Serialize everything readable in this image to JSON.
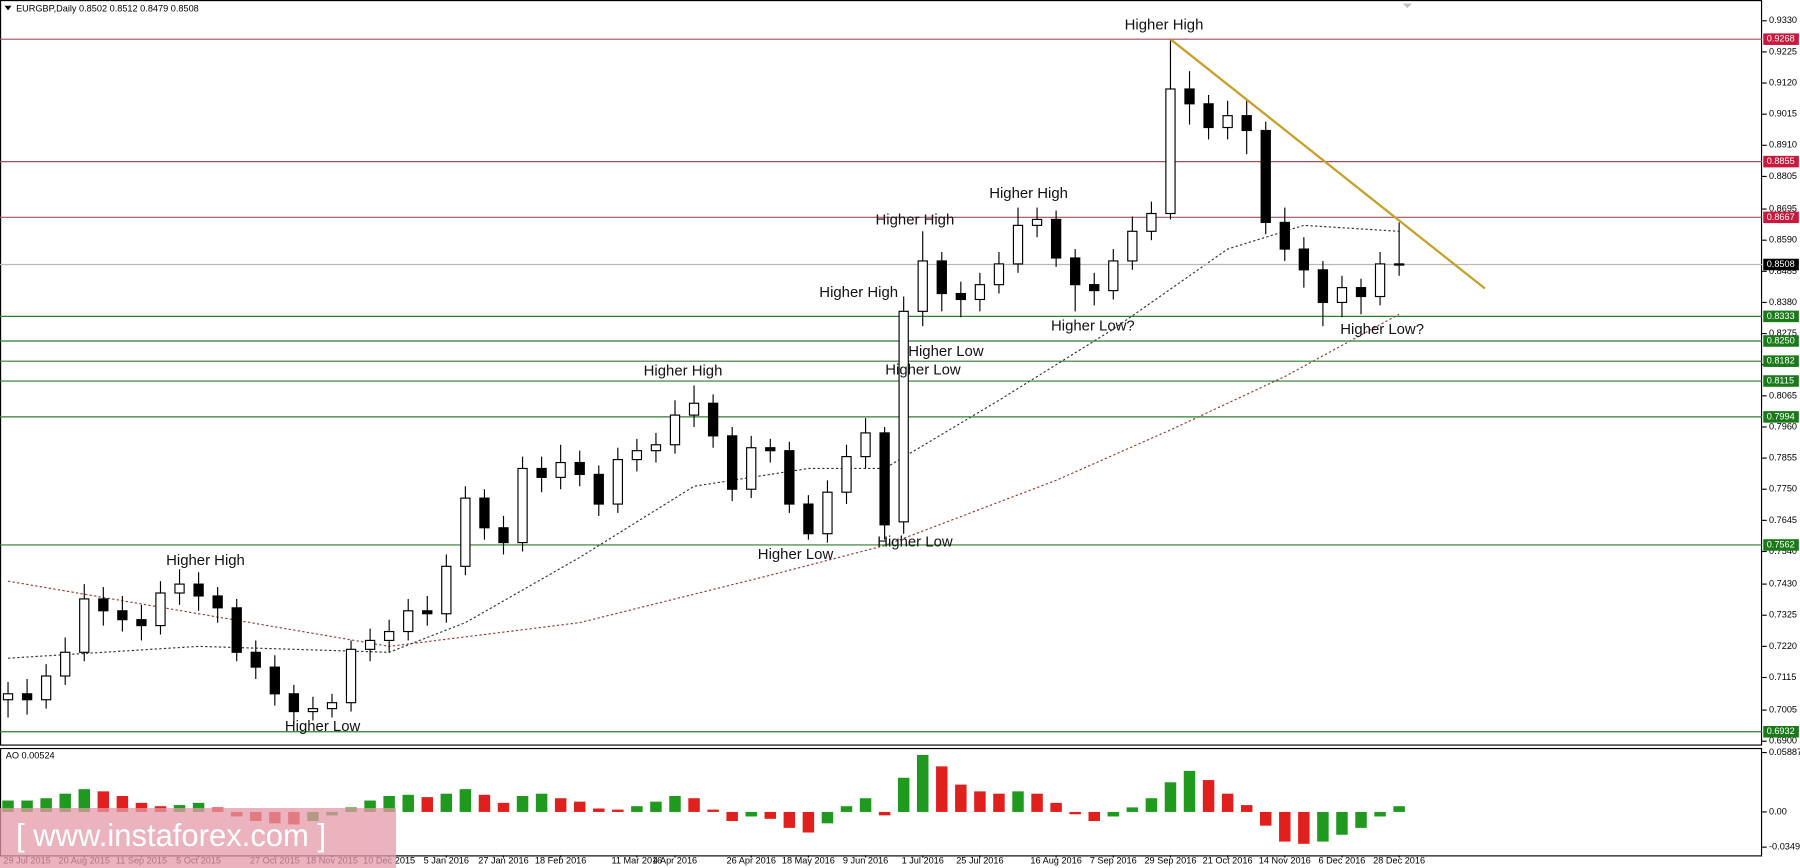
{
  "chart_data": {
    "type": "candlestick",
    "title": "EURGBP,Daily  0.8502 0.8512 0.8479 0.8508",
    "watermark": "[ www.instaforex.com ]",
    "categories": [
      null,
      "29 Jul 2015",
      null,
      null,
      "20 Aug 2015",
      null,
      null,
      "11 Sep 2015",
      null,
      null,
      "5 Oct 2015",
      null,
      null,
      null,
      "27 Oct 2015",
      null,
      null,
      "18 Nov 2015",
      null,
      null,
      "10 Dec 2015",
      null,
      null,
      "5 Jan 2016",
      null,
      null,
      "27 Jan 2016",
      null,
      null,
      "18 Feb 2016",
      null,
      null,
      null,
      "11 Mar 2016",
      null,
      "4 Apr 2016",
      null,
      null,
      null,
      "26 Apr 2016",
      null,
      null,
      "18 May 2016",
      null,
      null,
      "9 Jun 2016",
      null,
      null,
      "1 Jul 2016",
      null,
      null,
      "25 Jul 2016",
      null,
      null,
      null,
      "16 Aug 2016",
      null,
      null,
      "7 Sep 2016",
      null,
      null,
      "29 Sep 2016",
      null,
      null,
      "21 Oct 2016",
      null,
      null,
      "14 Nov 2016",
      null,
      null,
      "6 Dec 2016",
      null,
      null,
      "28 Dec 2016"
    ],
    "open": [
      0.704,
      0.706,
      0.704,
      0.712,
      0.72,
      0.738,
      0.734,
      0.731,
      0.729,
      0.74,
      0.743,
      0.739,
      0.735,
      0.72,
      0.715,
      0.706,
      0.7,
      0.701,
      0.703,
      0.721,
      0.724,
      0.727,
      0.734,
      0.733,
      0.749,
      0.772,
      0.762,
      0.757,
      0.782,
      0.779,
      0.784,
      0.78,
      0.77,
      0.785,
      0.788,
      0.79,
      0.8,
      0.804,
      0.793,
      0.775,
      0.789,
      0.788,
      0.77,
      0.76,
      0.774,
      0.786,
      0.794,
      0.764,
      0.835,
      0.852,
      0.841,
      0.839,
      0.844,
      0.851,
      0.864,
      0.866,
      0.853,
      0.844,
      0.842,
      0.852,
      0.862,
      0.868,
      0.91,
      0.905,
      0.897,
      0.901,
      0.896,
      0.865,
      0.856,
      0.849,
      0.838,
      0.843,
      0.84,
      0.851
    ],
    "high": [
      0.71,
      0.711,
      0.716,
      0.725,
      0.743,
      0.742,
      0.739,
      0.736,
      0.744,
      0.748,
      0.747,
      0.742,
      0.738,
      0.724,
      0.719,
      0.709,
      0.705,
      0.706,
      0.724,
      0.728,
      0.731,
      0.738,
      0.739,
      0.753,
      0.776,
      0.775,
      0.766,
      0.786,
      0.786,
      0.79,
      0.788,
      0.783,
      0.789,
      0.792,
      0.794,
      0.805,
      0.81,
      0.807,
      0.796,
      0.793,
      0.792,
      0.791,
      0.773,
      0.778,
      0.79,
      0.799,
      0.796,
      0.84,
      0.862,
      0.855,
      0.845,
      0.848,
      0.855,
      0.87,
      0.87,
      0.869,
      0.856,
      0.848,
      0.856,
      0.867,
      0.872,
      0.9268,
      0.916,
      0.908,
      0.906,
      0.906,
      0.899,
      0.87,
      0.86,
      0.852,
      0.847,
      0.846,
      0.855,
      0.865
    ],
    "low": [
      0.698,
      0.699,
      0.701,
      0.709,
      0.717,
      0.729,
      0.727,
      0.724,
      0.726,
      0.736,
      0.734,
      0.73,
      0.717,
      0.711,
      0.702,
      0.696,
      0.697,
      0.698,
      0.7,
      0.717,
      0.72,
      0.724,
      0.729,
      0.73,
      0.746,
      0.758,
      0.753,
      0.754,
      0.774,
      0.775,
      0.776,
      0.766,
      0.767,
      0.781,
      0.784,
      0.787,
      0.796,
      0.789,
      0.771,
      0.772,
      0.784,
      0.767,
      0.758,
      0.757,
      0.77,
      0.782,
      0.758,
      0.76,
      0.83,
      0.835,
      0.833,
      0.835,
      0.841,
      0.848,
      0.86,
      0.85,
      0.835,
      0.837,
      0.839,
      0.849,
      0.859,
      0.866,
      0.898,
      0.893,
      0.893,
      0.888,
      0.861,
      0.852,
      0.843,
      0.83,
      0.833,
      0.834,
      0.837,
      0.847
    ],
    "close": [
      0.706,
      0.704,
      0.712,
      0.72,
      0.738,
      0.734,
      0.731,
      0.729,
      0.74,
      0.743,
      0.739,
      0.735,
      0.72,
      0.715,
      0.706,
      0.7,
      0.701,
      0.703,
      0.721,
      0.724,
      0.727,
      0.734,
      0.733,
      0.749,
      0.772,
      0.762,
      0.757,
      0.782,
      0.779,
      0.784,
      0.78,
      0.77,
      0.785,
      0.788,
      0.79,
      0.8,
      0.804,
      0.793,
      0.775,
      0.789,
      0.788,
      0.77,
      0.76,
      0.774,
      0.786,
      0.794,
      0.763,
      0.835,
      0.852,
      0.841,
      0.839,
      0.844,
      0.851,
      0.864,
      0.866,
      0.853,
      0.844,
      0.842,
      0.852,
      0.862,
      0.868,
      0.91,
      0.905,
      0.897,
      0.901,
      0.896,
      0.865,
      0.856,
      0.849,
      0.838,
      0.843,
      0.84,
      0.851,
      0.8508
    ],
    "ylim": [
      0.6889,
      0.9369
    ],
    "yticks": [
      {
        "value": 0.933,
        "label": "0.9330"
      },
      0.9225,
      {
        "value": 0.912,
        "label": "0.9120"
      },
      0.9015,
      {
        "value": 0.891,
        "label": "0.8910"
      },
      0.8805,
      0.8695,
      {
        "value": 0.859,
        "label": "0.8590"
      },
      0.8485,
      {
        "value": 0.838,
        "label": "0.8380"
      },
      0.8275,
      {
        "value": 0.817,
        "label": "0.8170"
      },
      0.8065,
      {
        "value": 0.796,
        "label": "0.7960"
      },
      0.7855,
      {
        "value": 0.775,
        "label": "0.7750"
      },
      0.7645,
      {
        "value": 0.754,
        "label": "0.7540"
      },
      {
        "value": 0.743,
        "label": "0.7430"
      },
      0.7325,
      {
        "value": 0.722,
        "label": "0.7220"
      },
      0.7115,
      0.7005,
      {
        "value": 0.69,
        "label": "0.6900"
      }
    ],
    "levels": [
      {
        "value": 0.9268,
        "color": "#c8183c",
        "line": "#a05060"
      },
      {
        "value": 0.8855,
        "color": "#c8183c",
        "line": "#a05060"
      },
      {
        "value": 0.8667,
        "color": "#c8183c",
        "line": "#a05060"
      },
      {
        "value": 0.8508,
        "color": "#000000",
        "line": "#b8b8b8"
      },
      {
        "value": 0.8333,
        "color": "#1a7a1a",
        "line": "#2e7d2e"
      },
      {
        "value": 0.825,
        "label": "0.8250",
        "color": "#1a7a1a",
        "line": "#2e7d2e"
      },
      {
        "value": 0.8182,
        "color": "#1a7a1a",
        "line": "#2e7d2e"
      },
      {
        "value": 0.8115,
        "color": "#1a7a1a",
        "line": "#2e7d2e"
      },
      {
        "value": 0.7994,
        "color": "#1a7a1a",
        "line": "#2e7d2e"
      },
      {
        "value": 0.7562,
        "color": "#1a7a1a",
        "line": "#2e7d2e"
      },
      {
        "value": 0.6932,
        "color": "#1a7a1a",
        "line": "#2e7d2e"
      }
    ],
    "moving_averages": [
      {
        "color": "#9a3a2a",
        "x": [
          0,
          10,
          20,
          30,
          40,
          46,
          55,
          61,
          67,
          73
        ],
        "values": [
          0.744,
          0.733,
          0.722,
          0.73,
          0.746,
          0.756,
          0.778,
          0.795,
          0.813,
          0.834
        ]
      },
      {
        "color": "#333333",
        "x": [
          0,
          10,
          20,
          24,
          30,
          36,
          42,
          46,
          52,
          58,
          64,
          68,
          73
        ],
        "values": [
          0.718,
          0.722,
          0.72,
          0.73,
          0.752,
          0.776,
          0.782,
          0.782,
          0.805,
          0.829,
          0.856,
          0.864,
          0.862
        ]
      }
    ],
    "trendline": {
      "color": "#c8a02c",
      "values": [
        0.9268,
        0.8427
      ]
    },
    "annotations": [
      "Higher High",
      "Higher High",
      "Higher High",
      "Higher High",
      "Higher Low",
      "Higher Low",
      "Higher High",
      "Higher Low?",
      "Higher Low?",
      "Higher Low",
      "Higher Low",
      "Higher High",
      "Higher Low"
    ],
    "indicator": {
      "type": "bar",
      "title": "AO 0.00524",
      "up_color": "#1f9a1f",
      "down_color": "#e0201c",
      "values": [
        0.0113,
        0.0113,
        0.0136,
        0.0181,
        0.0226,
        0.0204,
        0.0158,
        0.009,
        0.0057,
        0.0068,
        0.009,
        0.0045,
        -0.0045,
        -0.009,
        -0.0113,
        -0.0124,
        -0.009,
        -0.0034,
        0.0045,
        0.0113,
        0.0158,
        0.017,
        0.0147,
        0.0181,
        0.0226,
        0.017,
        0.009,
        0.0158,
        0.0181,
        0.0136,
        0.0102,
        0.0034,
        0.0023,
        0.0057,
        0.0102,
        0.0158,
        0.0136,
        0.0023,
        -0.009,
        -0.0045,
        -0.0068,
        -0.0158,
        -0.0204,
        -0.0113,
        0.0057,
        0.0136,
        -0.0034,
        0.0339,
        0.0565,
        0.0452,
        0.0271,
        0.0204,
        0.0181,
        0.0204,
        0.0181,
        0.009,
        -0.0023,
        -0.009,
        -0.0045,
        0.0045,
        0.0136,
        0.0294,
        0.0407,
        0.0316,
        0.0181,
        0.0068,
        -0.0136,
        -0.0294,
        -0.0316,
        -0.0294,
        -0.0226,
        -0.0158,
        -0.0045,
        0.0057
      ],
      "ylim": [
        -0.043,
        0.0623
      ],
      "yticks": [
        0.05887,
        {
          "value": 0,
          "label": "0.00"
        },
        -0.03491
      ]
    }
  }
}
